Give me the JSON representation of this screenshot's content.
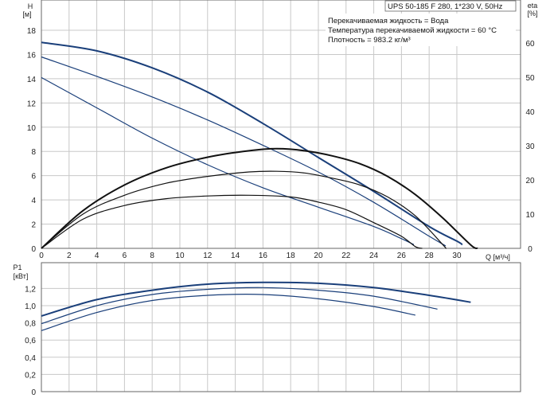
{
  "header": {
    "title": "UPS 50-185 F 280, 1*230 V, 50Hz",
    "notes": [
      "Перекачиваемая жидкость = Вода",
      "Температура перекачиваемой жидкости = 60 °C",
      "Плотность = 983.2 кг/м³"
    ]
  },
  "colors": {
    "head": "#1a3f7a",
    "eff": "#111111",
    "grid": "#c8c8c8",
    "frame": "#666666"
  },
  "chart_data": [
    {
      "type": "line",
      "xlabel": "Q [м³/ч]",
      "ylabel": "H",
      "ylabel_unit": "[м]",
      "y2label": "eta",
      "y2label_unit": "[%]",
      "xlim": [
        0,
        34.6
      ],
      "ylim": [
        0,
        20.5
      ],
      "y2lim": [
        0,
        72.5
      ],
      "x_ticks": [
        0,
        2,
        4,
        6,
        8,
        10,
        12,
        14,
        16,
        18,
        20,
        22,
        24,
        26,
        28,
        30
      ],
      "y_ticks": [
        0,
        2,
        4,
        6,
        8,
        10,
        12,
        14,
        16,
        18
      ],
      "y2_ticks": [
        0,
        10,
        20,
        30,
        40,
        50,
        60
      ],
      "grid": true,
      "series": [
        {
          "axis": "H",
          "style": "head",
          "x": [
            0,
            4,
            8,
            12,
            16,
            20,
            24,
            28,
            30,
            30.4
          ],
          "y": [
            17.0,
            16.3,
            14.9,
            12.9,
            10.3,
            7.5,
            4.7,
            1.8,
            0.6,
            0.3
          ]
        },
        {
          "axis": "H",
          "style": "head",
          "x": [
            0,
            4,
            8,
            12,
            16,
            20,
            24,
            28,
            29.2
          ],
          "y": [
            15.8,
            14.2,
            12.5,
            10.6,
            8.5,
            6.3,
            3.8,
            1.0,
            0.2
          ]
        },
        {
          "axis": "H",
          "style": "head",
          "x": [
            0,
            4,
            8,
            12,
            16,
            20,
            24,
            26,
            26.9
          ],
          "y": [
            14.1,
            11.6,
            9.1,
            6.9,
            5.0,
            3.4,
            1.8,
            0.8,
            0.3
          ]
        },
        {
          "axis": "eta",
          "style": "eff",
          "x": [
            0,
            3,
            6,
            9,
            12,
            15,
            17,
            19,
            21,
            23,
            25,
            27,
            29,
            31,
            31.5
          ],
          "y": [
            0,
            11,
            18.5,
            23.5,
            26.6,
            28.5,
            29.1,
            28.5,
            27,
            24.7,
            21,
            15.7,
            8.8,
            1,
            0
          ]
        },
        {
          "axis": "eta",
          "style": "eff",
          "x": [
            0,
            3,
            6,
            9,
            12,
            15,
            17,
            19,
            21,
            23,
            25,
            27,
            29,
            29.2
          ],
          "y": [
            0,
            10,
            15.5,
            19,
            21,
            22.3,
            22.5,
            22,
            20.5,
            18.5,
            15,
            9.5,
            1,
            0
          ]
        },
        {
          "axis": "eta",
          "style": "eff",
          "x": [
            0,
            3,
            6,
            9,
            12,
            15,
            18,
            20,
            22,
            24,
            26,
            27,
            27.5
          ],
          "y": [
            0,
            8.5,
            12.5,
            14.5,
            15.3,
            15.5,
            15,
            13.5,
            11.3,
            7.5,
            3.5,
            0.5,
            0
          ]
        }
      ]
    },
    {
      "type": "line",
      "ylabel": "P1",
      "ylabel_unit": "[кВт]",
      "xlim": [
        0,
        34.6
      ],
      "ylim": [
        0,
        1.5
      ],
      "y_ticks": [
        0,
        0.2,
        0.4,
        0.6,
        0.8,
        1.0,
        1.2
      ],
      "y_tick_labels": [
        "0",
        "0,2",
        "0,4",
        "0,6",
        "0,8",
        "1,0",
        "1,2"
      ],
      "grid": true,
      "series": [
        {
          "style": "head",
          "x": [
            0,
            4,
            8,
            12,
            16,
            20,
            24,
            28,
            31
          ],
          "y": [
            0.88,
            1.07,
            1.18,
            1.25,
            1.27,
            1.26,
            1.21,
            1.12,
            1.04
          ]
        },
        {
          "style": "head",
          "x": [
            0,
            4,
            8,
            12,
            16,
            20,
            24,
            28.6
          ],
          "y": [
            0.79,
            1.0,
            1.13,
            1.19,
            1.21,
            1.18,
            1.11,
            0.96
          ]
        },
        {
          "style": "head",
          "x": [
            0,
            4,
            8,
            12,
            16,
            20,
            24,
            27
          ],
          "y": [
            0.71,
            0.92,
            1.06,
            1.12,
            1.13,
            1.08,
            0.99,
            0.89
          ]
        }
      ]
    }
  ]
}
